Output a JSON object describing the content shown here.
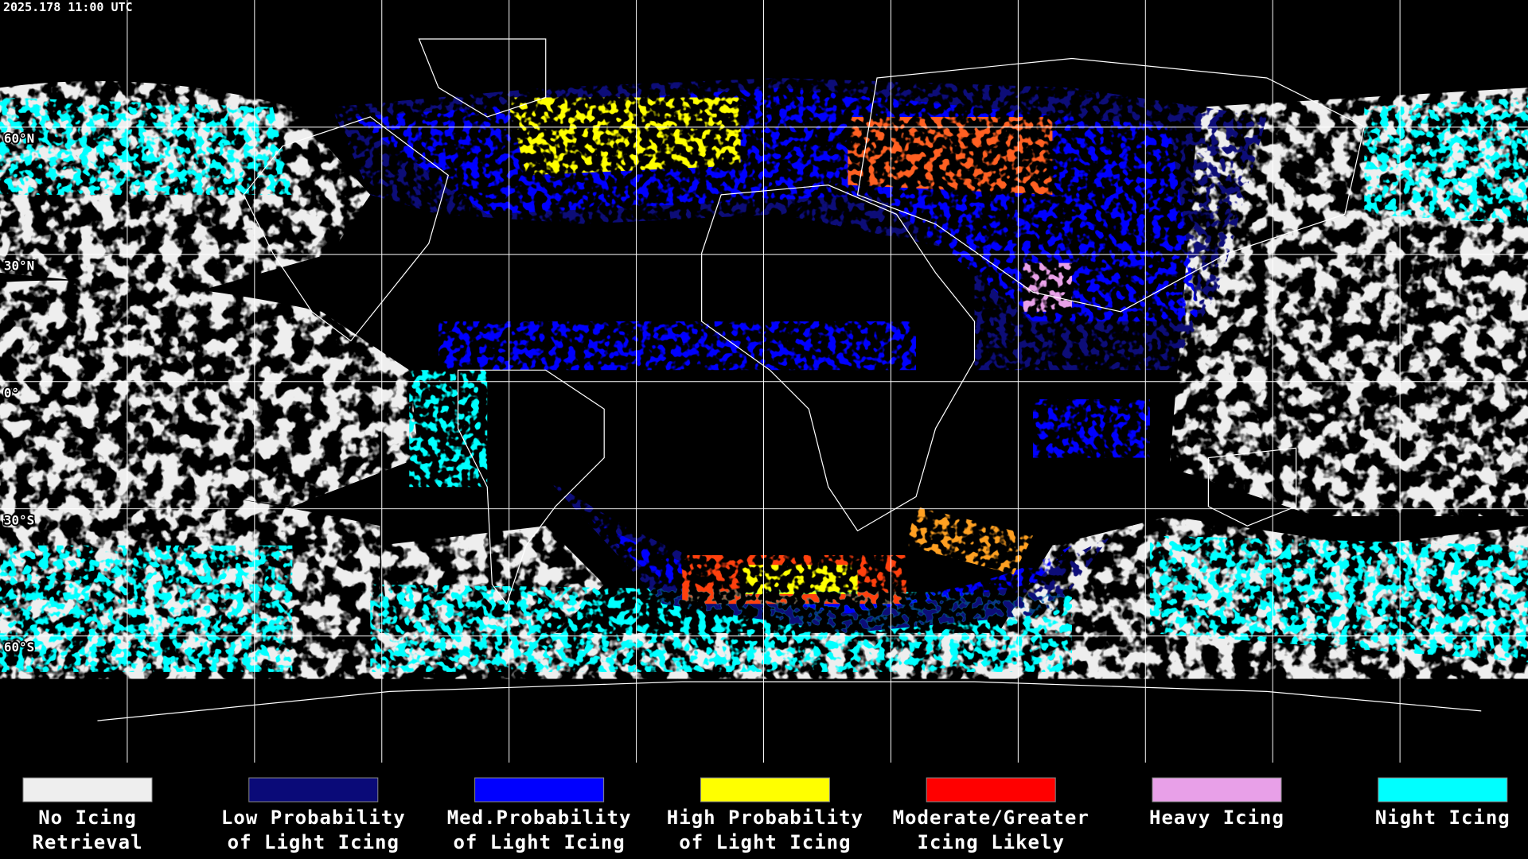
{
  "header": {
    "timestamp": "2025.178 11:00 UTC"
  },
  "map": {
    "latitude_labels": [
      "60°N",
      "30°N",
      "0°",
      "30°S",
      "60°S"
    ]
  },
  "legend": {
    "items": [
      {
        "lines": [
          "No Icing",
          "Retrieval"
        ],
        "color": "#eeeeee"
      },
      {
        "lines": [
          "Low Probability",
          "of Light Icing"
        ],
        "color": "#0a0a78"
      },
      {
        "lines": [
          "Med.Probability",
          "of Light Icing"
        ],
        "color": "#0000ff"
      },
      {
        "lines": [
          "High Probability",
          "of Light Icing"
        ],
        "color": "#ffff00"
      },
      {
        "lines": [
          "Moderate/Greater",
          "Icing Likely"
        ],
        "color": "#ff0000"
      },
      {
        "lines": [
          "Heavy Icing"
        ],
        "color": "#e8a0e8"
      },
      {
        "lines": [
          "Night Icing"
        ],
        "color": "#00ffff"
      }
    ]
  }
}
